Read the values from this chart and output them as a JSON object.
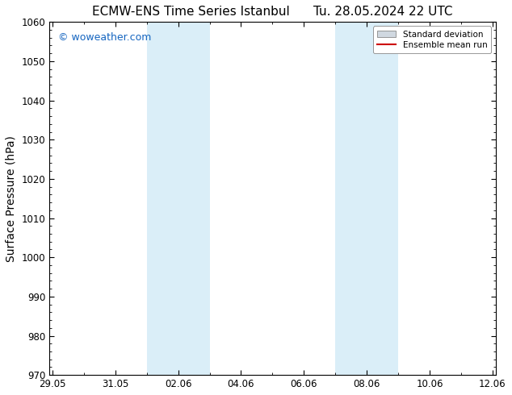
{
  "title": "ECMW-ENS Time Series Istanbul",
  "title2": "Tu. 28.05.2024 22 UTC",
  "ylabel": "Surface Pressure (hPa)",
  "watermark": "© woweather.com",
  "watermark_color": "#1565c0",
  "background_color": "#ffffff",
  "plot_bg_color": "#ffffff",
  "ylim": [
    970,
    1060
  ],
  "yticks": [
    970,
    980,
    990,
    1000,
    1010,
    1020,
    1030,
    1040,
    1050,
    1060
  ],
  "xtick_labels": [
    "29.05",
    "31.05",
    "02.06",
    "04.06",
    "06.06",
    "08.06",
    "10.06",
    "12.06"
  ],
  "xtick_positions": [
    0,
    2,
    4,
    6,
    8,
    10,
    12,
    14
  ],
  "xlim": [
    -0.1,
    14.1
  ],
  "shaded_regions": [
    {
      "x_start": 3.0,
      "x_end": 5.0,
      "color": "#daeef8"
    },
    {
      "x_start": 9.0,
      "x_end": 11.0,
      "color": "#daeef8"
    }
  ],
  "legend_std_color": "#d0d8e0",
  "legend_std_edge": "#888888",
  "legend_mean_color": "#cc0000",
  "title_fontsize": 11,
  "tick_fontsize": 8.5,
  "ylabel_fontsize": 10,
  "watermark_fontsize": 9
}
